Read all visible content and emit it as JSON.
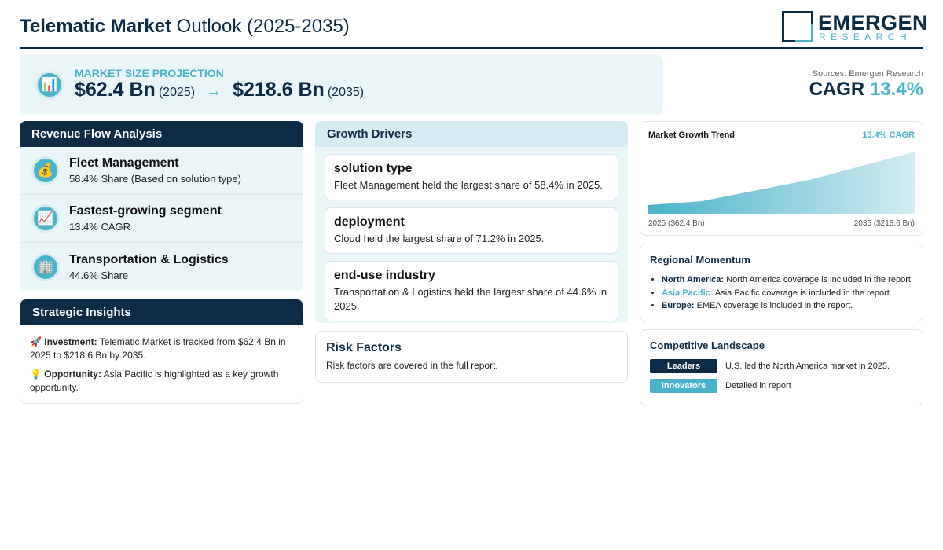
{
  "header": {
    "title_bold": "Telematic Market",
    "title_rest": "Outlook (2025-2035)",
    "logo": {
      "name": "EMERGEN",
      "tagline": "RESEARCH"
    }
  },
  "projection": {
    "icon": "📊",
    "label": "MARKET SIZE PROJECTION",
    "start_value": "$62.4 Bn",
    "start_year": "(2025)",
    "arrow": "→",
    "end_value": "$218.6 Bn",
    "end_year": "(2035)"
  },
  "summary": {
    "source": "Sources: Emergen Research",
    "cagr_label": "CAGR",
    "cagr_value": "13.4%"
  },
  "revenue_flow": {
    "title": "Revenue Flow Analysis",
    "items": [
      {
        "icon": "💰",
        "title": "Fleet Management",
        "text": "58.4% Share (Based on solution type)"
      },
      {
        "icon": "📈",
        "title": "Fastest-growing segment",
        "text": "13.4% CAGR"
      },
      {
        "icon": "🏢",
        "title": "Transportation & Logistics",
        "text": "44.6% Share"
      }
    ]
  },
  "strategic_insights": {
    "title": "Strategic Insights",
    "items": [
      {
        "icon": "🚀",
        "label": "Investment:",
        "text": "Telematic Market is tracked from $62.4 Bn in 2025 to $218.6 Bn by 2035."
      },
      {
        "icon": "💡",
        "label": "Opportunity:",
        "text": "Asia Pacific is highlighted as a key growth opportunity."
      }
    ]
  },
  "growth_drivers": {
    "title": "Growth Drivers",
    "items": [
      {
        "title": "solution type",
        "text": "Fleet Management held the largest share of 58.4% in 2025."
      },
      {
        "title": "deployment",
        "text": "Cloud held the largest share of 71.2% in 2025."
      },
      {
        "title": "end-use industry",
        "text": "Transportation & Logistics held the largest share of 44.6% in 2025."
      }
    ]
  },
  "risk_factors": {
    "title": "Risk Factors",
    "text": "Risk factors are covered in the full report."
  },
  "growth_trend": {
    "title": "Market Growth Trend",
    "badge": "13.4% CAGR",
    "start_label": "2025 ($62.4 Bn)",
    "end_label": "2035 ($218.6 Bn)"
  },
  "regional_momentum": {
    "title": "Regional Momentum",
    "items": [
      {
        "region": "North America:",
        "text": "North America coverage is included in the report."
      },
      {
        "region": "Asia Pacific:",
        "text": "Asia Pacific coverage is included in the report."
      },
      {
        "region": "Europe:",
        "text": "EMEA coverage is included in the report."
      }
    ]
  },
  "competitive_landscape": {
    "title": "Competitive Landscape",
    "items": [
      {
        "badge": "Leaders",
        "text": "U.S. led the North America market in 2025."
      },
      {
        "badge": "Innovators",
        "text": "Detailed in report"
      }
    ]
  }
}
